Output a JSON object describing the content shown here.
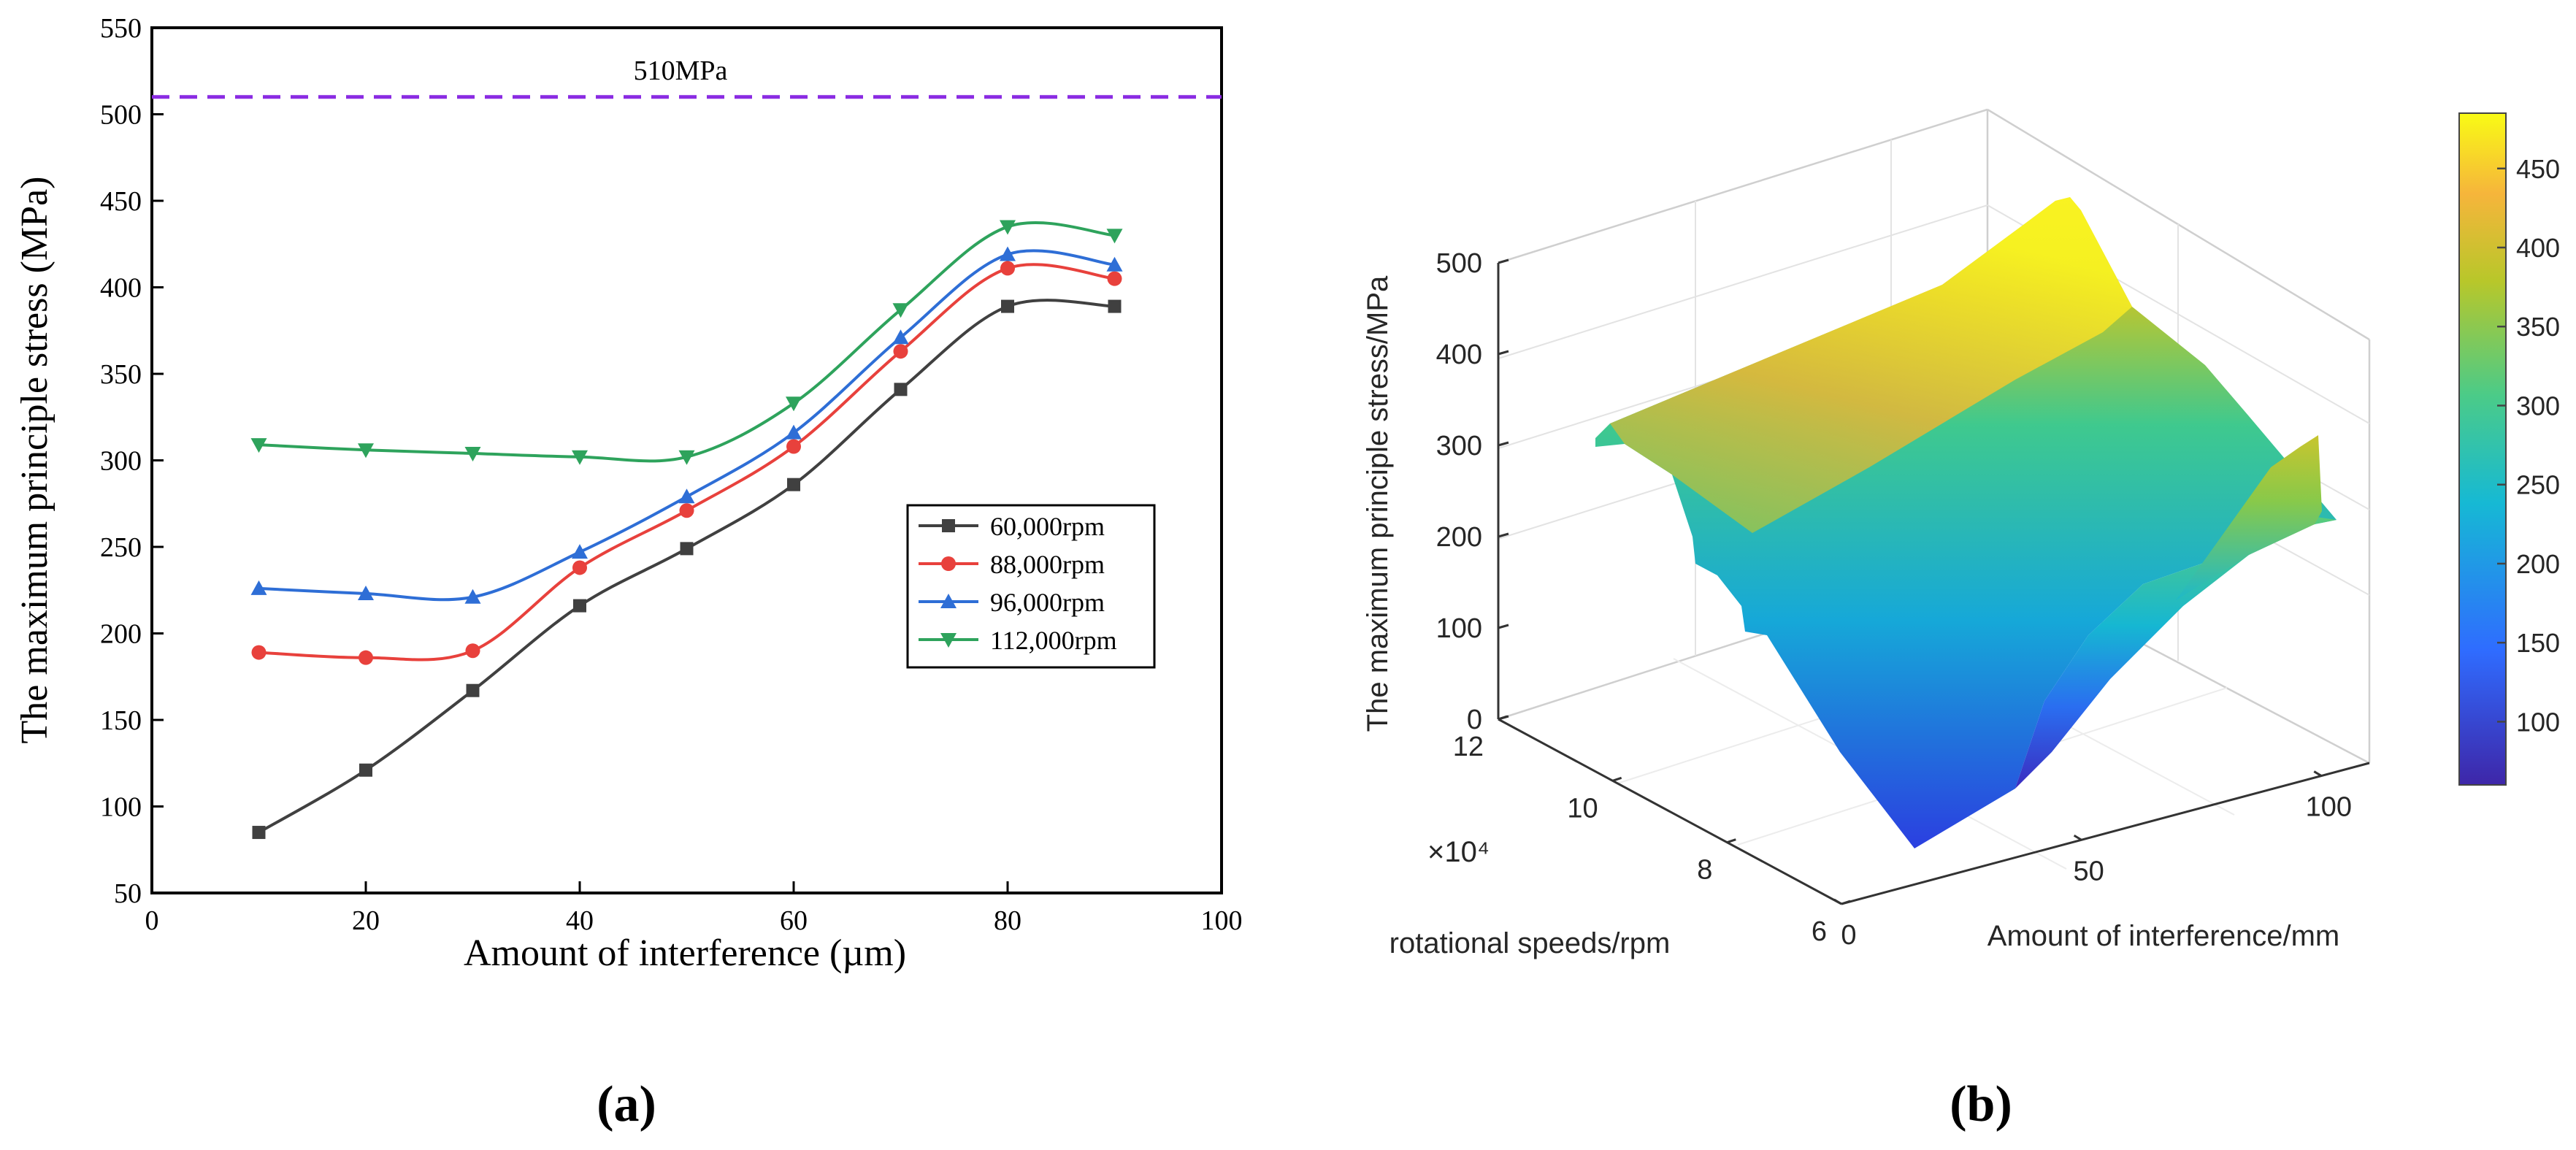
{
  "panel_labels": {
    "a": "(a)",
    "b": "(b)"
  },
  "chart_data": [
    {
      "type": "line",
      "title": "",
      "xlabel": "Amount of interference (µm)",
      "ylabel": "The maximum principle stress (MPa)",
      "xlim": [
        0,
        100
      ],
      "ylim": [
        50,
        550
      ],
      "xticks": [
        0,
        20,
        40,
        60,
        80,
        100
      ],
      "yticks": [
        50,
        100,
        150,
        200,
        250,
        300,
        350,
        400,
        450,
        500,
        550
      ],
      "x": [
        10,
        20,
        30,
        40,
        50,
        60,
        70,
        80,
        90
      ],
      "series": [
        {
          "name": "60,000rpm",
          "color": "#404040",
          "marker": "square",
          "values": [
            85,
            121,
            167,
            216,
            249,
            286,
            341,
            389,
            389
          ]
        },
        {
          "name": "88,000rpm",
          "color": "#e8413c",
          "marker": "circle",
          "values": [
            189,
            186,
            190,
            238,
            271,
            308,
            363,
            411,
            405
          ]
        },
        {
          "name": "96,000rpm",
          "color": "#2e6ed6",
          "marker": "triangle-up",
          "values": [
            226,
            223,
            221,
            247,
            279,
            316,
            371,
            419,
            413
          ]
        },
        {
          "name": "112,000rpm",
          "color": "#2ea35c",
          "marker": "triangle-down",
          "values": [
            309,
            306,
            304,
            302,
            302,
            333,
            387,
            435,
            430
          ]
        }
      ],
      "reference_line": {
        "y": 510,
        "label": "510MPa",
        "color": "#8a2be2",
        "style": "dashed"
      },
      "legend_position": "right-middle"
    },
    {
      "type": "surface",
      "title": "",
      "zlabel": "The maximum principle stress/MPa",
      "ylabel": "rotational speeds/rpm",
      "xlabel": "Amount of interference/mm",
      "z_ticks": [
        0,
        100,
        200,
        300,
        400,
        500
      ],
      "speed_ticks": [
        6,
        8,
        10,
        12
      ],
      "speed_multiplier": "×10⁴",
      "interference_ticks": [
        0,
        50,
        100
      ],
      "colorbar": {
        "ticks": [
          100,
          150,
          200,
          250,
          300,
          350,
          400,
          450
        ],
        "range": [
          60,
          485
        ],
        "colors": [
          "#3e26a8",
          "#2f6cff",
          "#16b9d4",
          "#4bcb88",
          "#b8c72a",
          "#f6b53b",
          "#f9fb15"
        ]
      }
    }
  ]
}
